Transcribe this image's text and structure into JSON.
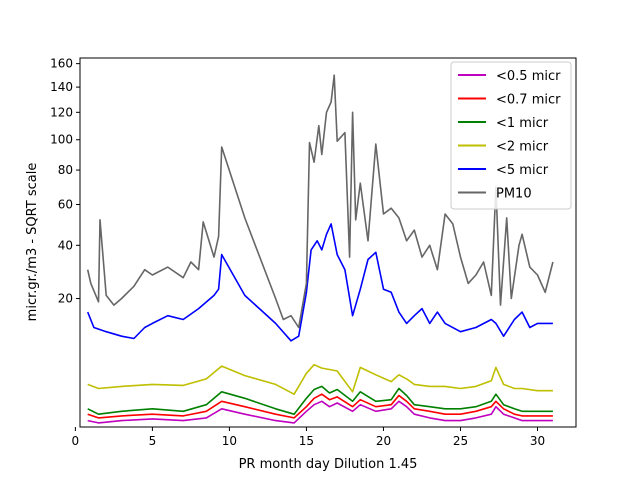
{
  "chart_data": {
    "type": "line",
    "title": "",
    "xlabel": "PR month day  Dilution 1.45",
    "ylabel": "micr.gr./m3 - SQRT scale",
    "y_scale": "sqrt",
    "xlim": [
      0.3,
      32.5
    ],
    "ylim": [
      0,
      165
    ],
    "x_ticks": [
      0,
      5,
      10,
      15,
      20,
      25,
      30
    ],
    "y_ticks": [
      20,
      40,
      60,
      80,
      100,
      120,
      140,
      160
    ],
    "grid": false,
    "legend_position": "top-right",
    "series": [
      {
        "name": "<0.5 micr",
        "color": "#bf00bf",
        "x": [
          0.8,
          1.5,
          3,
          5,
          7,
          8.5,
          9.5,
          11,
          13,
          14.2,
          15,
          15.5,
          16,
          16.5,
          17,
          18,
          18.5,
          19.5,
          20.5,
          21,
          21.5,
          22,
          23,
          24,
          25,
          26,
          27,
          27.3,
          27.8,
          28.5,
          29,
          30,
          31
        ],
        "y": [
          0.05,
          0.02,
          0.05,
          0.08,
          0.05,
          0.1,
          0.4,
          0.2,
          0.05,
          0.02,
          0.3,
          0.6,
          0.8,
          0.5,
          0.7,
          0.3,
          0.6,
          0.3,
          0.4,
          0.8,
          0.5,
          0.2,
          0.1,
          0.05,
          0.05,
          0.1,
          0.2,
          0.5,
          0.2,
          0.1,
          0.05,
          0.05,
          0.05
        ]
      },
      {
        "name": "<0.7 micr",
        "color": "#ff0000",
        "x": [
          0.8,
          1.5,
          3,
          5,
          7,
          8.5,
          9.5,
          11,
          13,
          14.2,
          15,
          15.5,
          16,
          16.5,
          17,
          18,
          18.5,
          19.5,
          20.5,
          21,
          21.5,
          22,
          23,
          24,
          25,
          26,
          27,
          27.3,
          27.8,
          28.5,
          29,
          30,
          31
        ],
        "y": [
          0.2,
          0.1,
          0.15,
          0.2,
          0.15,
          0.3,
          0.8,
          0.5,
          0.2,
          0.1,
          0.5,
          1.0,
          1.3,
          0.9,
          1.1,
          0.5,
          0.9,
          0.5,
          0.6,
          1.2,
          0.8,
          0.4,
          0.3,
          0.2,
          0.2,
          0.3,
          0.5,
          0.8,
          0.4,
          0.2,
          0.15,
          0.15,
          0.15
        ]
      },
      {
        "name": "<1 micr",
        "color": "#008000",
        "x": [
          0.8,
          1.5,
          3,
          5,
          7,
          8.5,
          9.5,
          11,
          13,
          14.2,
          15,
          15.5,
          16,
          16.5,
          17,
          18,
          18.5,
          19.5,
          20.5,
          21,
          21.5,
          22,
          23,
          24,
          25,
          26,
          27,
          27.3,
          27.8,
          28.5,
          29,
          30,
          31
        ],
        "y": [
          0.4,
          0.2,
          0.3,
          0.4,
          0.3,
          0.6,
          1.5,
          1.0,
          0.4,
          0.2,
          1.0,
          1.7,
          2.0,
          1.4,
          1.7,
          0.8,
          1.5,
          0.8,
          0.9,
          1.8,
          1.2,
          0.6,
          0.5,
          0.4,
          0.4,
          0.5,
          0.8,
          1.3,
          0.6,
          0.4,
          0.3,
          0.3,
          0.3
        ]
      },
      {
        "name": "<2 micr",
        "color": "#bfbf00",
        "x": [
          0.8,
          1.5,
          3,
          5,
          7,
          8.5,
          9.5,
          11,
          13,
          14.2,
          15,
          15.5,
          16,
          16.5,
          17,
          18,
          18.5,
          19.5,
          20.5,
          21,
          21.5,
          22,
          23,
          24,
          25,
          26,
          27,
          27.3,
          27.8,
          28.5,
          29,
          30,
          31
        ],
        "y": [
          2.2,
          1.8,
          2.0,
          2.2,
          2.1,
          2.8,
          4.5,
          3.2,
          2.2,
          1.3,
          3.5,
          4.7,
          4.2,
          4.0,
          3.8,
          1.5,
          4.3,
          3.3,
          2.5,
          3.3,
          2.8,
          2.2,
          2.0,
          2.0,
          1.8,
          2.0,
          2.6,
          4.3,
          2.2,
          1.8,
          1.8,
          1.6,
          1.6
        ]
      },
      {
        "name": "<5 micr",
        "color": "#0000ff",
        "x": [
          0.8,
          1.2,
          2,
          3,
          3.8,
          4.5,
          5,
          6,
          7,
          8,
          9,
          9.3,
          9.5,
          11,
          13,
          14,
          14.5,
          15,
          15.3,
          15.7,
          16,
          16.3,
          16.6,
          17,
          17.5,
          18,
          18.5,
          19,
          19.5,
          20,
          20.5,
          21,
          21.5,
          22,
          22.5,
          23,
          23.5,
          24,
          25,
          26,
          27,
          27.3,
          27.8,
          28.5,
          29,
          29.5,
          30,
          31
        ],
        "y": [
          16,
          12,
          11,
          10,
          9.5,
          12,
          13,
          15,
          14,
          17,
          21,
          23,
          36,
          21,
          13,
          9,
          10,
          22,
          38,
          42,
          38,
          45,
          50,
          36,
          30,
          15,
          23,
          34,
          37,
          23,
          22,
          16,
          13,
          15,
          17,
          13,
          16,
          13,
          11,
          12,
          14,
          13,
          10,
          14,
          16,
          12,
          13,
          13
        ]
      },
      {
        "name": "PM10",
        "color": "#666666",
        "x": [
          0.8,
          1,
          1.5,
          1.6,
          2,
          2.5,
          3,
          3.8,
          4.5,
          5,
          6,
          7,
          7.5,
          8,
          8.3,
          9,
          9.3,
          9.5,
          11,
          13,
          13.5,
          14,
          14.5,
          15,
          15.2,
          15.5,
          15.8,
          16,
          16.3,
          16.6,
          16.8,
          17,
          17.5,
          17.8,
          18,
          18.2,
          18.5,
          19,
          19.5,
          20,
          20.5,
          21,
          21.5,
          22,
          22.5,
          23,
          23.5,
          24,
          24.5,
          25,
          25.5,
          26,
          26.5,
          27,
          27.3,
          27.6,
          28,
          28.3,
          28.8,
          29,
          29.5,
          30,
          30.5,
          31
        ],
        "y": [
          30,
          25,
          19,
          52,
          21,
          18,
          20,
          24,
          30,
          28,
          31,
          27,
          33,
          30,
          51,
          35,
          44,
          95,
          53,
          20,
          14,
          15,
          12,
          25,
          98,
          85,
          110,
          90,
          120,
          128,
          150,
          99,
          105,
          35,
          120,
          52,
          72,
          42,
          97,
          55,
          58,
          53,
          42,
          47,
          35,
          40,
          30,
          55,
          50,
          35,
          25,
          28,
          33,
          21,
          70,
          18,
          53,
          20,
          40,
          45,
          31,
          28,
          22,
          33
        ]
      }
    ]
  }
}
